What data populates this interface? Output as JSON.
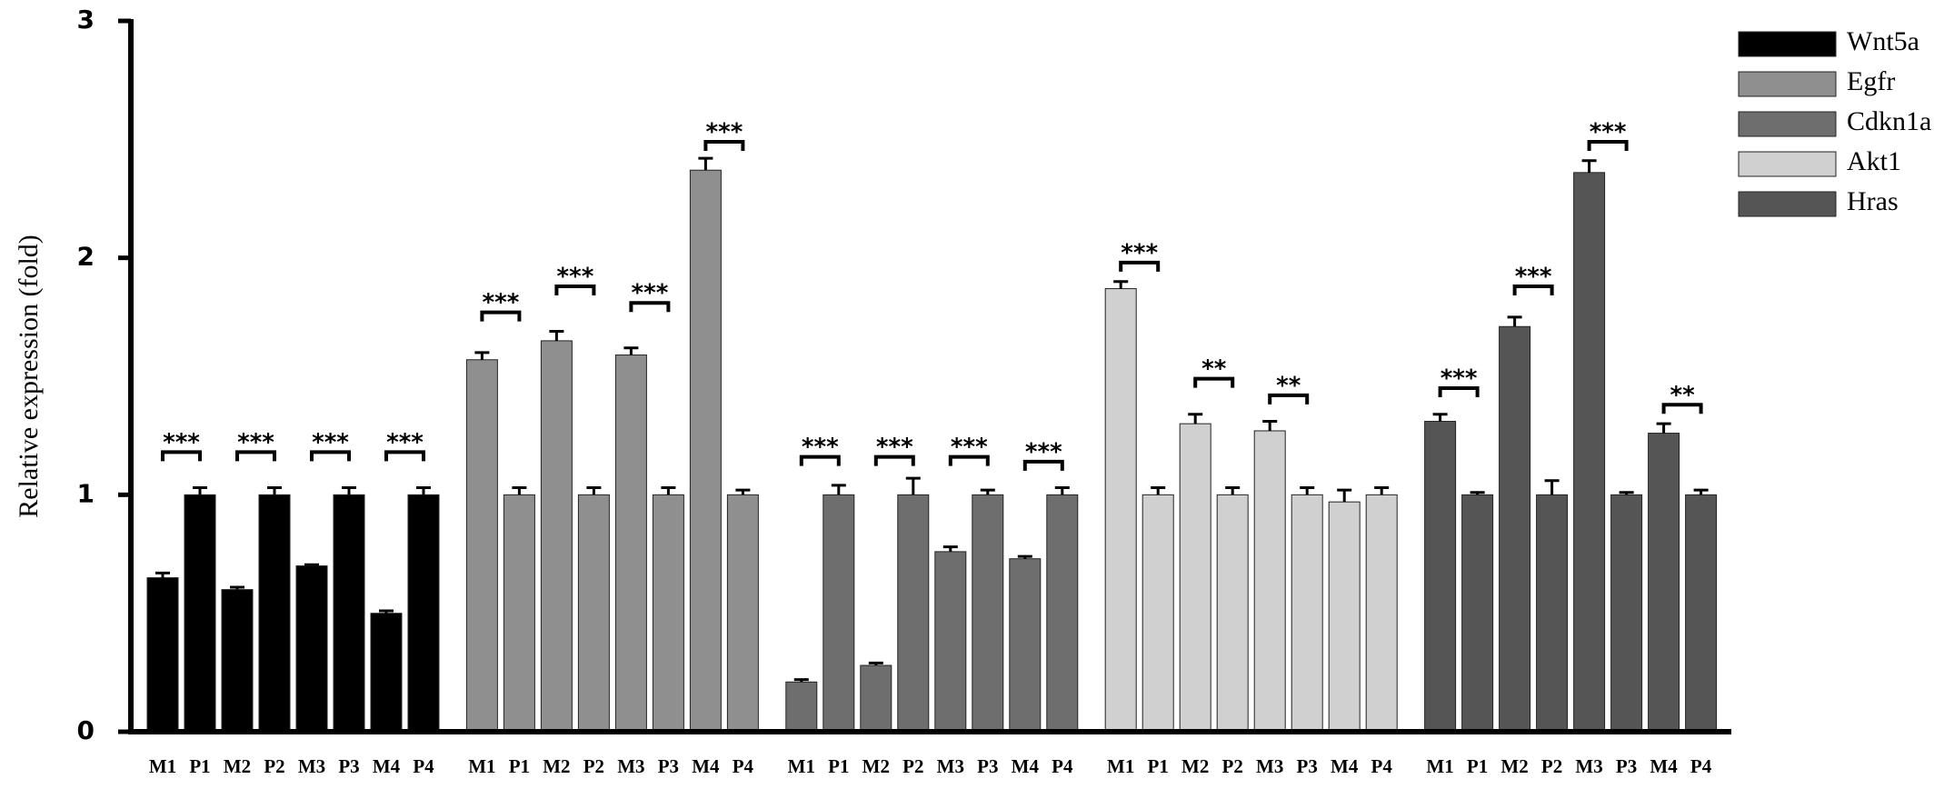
{
  "chart_data": {
    "type": "bar",
    "y_label": "Relative expression (fold)",
    "categories": [
      "M1",
      "P1",
      "M2",
      "P2",
      "M3",
      "P3",
      "M4",
      "P4"
    ],
    "ylim": [
      0,
      3
    ],
    "yticks": [
      0,
      1,
      2,
      3
    ],
    "series": [
      {
        "name": "Wnt5a",
        "color": "#000000",
        "values": [
          0.65,
          1.0,
          0.6,
          1.0,
          0.7,
          1.0,
          0.5,
          1.0
        ],
        "errors": [
          0.02,
          0.03,
          0.01,
          0.03,
          0.005,
          0.03,
          0.01,
          0.03
        ],
        "significance": [
          {
            "label": "***",
            "y": 1.18
          },
          {
            "label": "***",
            "y": 1.18
          },
          {
            "label": "***",
            "y": 1.18
          },
          {
            "label": "***",
            "y": 1.18
          }
        ]
      },
      {
        "name": "Egfr",
        "color": "#8f8f8f",
        "values": [
          1.57,
          1.0,
          1.65,
          1.0,
          1.59,
          1.0,
          2.37,
          1.0
        ],
        "errors": [
          0.03,
          0.03,
          0.04,
          0.03,
          0.03,
          0.03,
          0.05,
          0.02
        ],
        "significance": [
          {
            "label": "***",
            "y": 1.77
          },
          {
            "label": "***",
            "y": 1.88
          },
          {
            "label": "***",
            "y": 1.81
          },
          {
            "label": "***",
            "y": 2.49
          }
        ]
      },
      {
        "name": "Cdkn1a",
        "color": "#6e6e6e",
        "values": [
          0.21,
          1.0,
          0.28,
          1.0,
          0.76,
          1.0,
          0.73,
          1.0
        ],
        "errors": [
          0.01,
          0.04,
          0.01,
          0.07,
          0.02,
          0.02,
          0.01,
          0.03
        ],
        "significance": [
          {
            "label": "***",
            "y": 1.16
          },
          {
            "label": "***",
            "y": 1.16
          },
          {
            "label": "***",
            "y": 1.16
          },
          {
            "label": "***",
            "y": 1.14
          }
        ]
      },
      {
        "name": "Akt1",
        "color": "#d0d0d0",
        "values": [
          1.87,
          1.0,
          1.3,
          1.0,
          1.27,
          1.0,
          0.97,
          1.0
        ],
        "errors": [
          0.03,
          0.03,
          0.04,
          0.03,
          0.04,
          0.03,
          0.05,
          0.03
        ],
        "significance": [
          {
            "label": "***",
            "y": 1.98
          },
          {
            "label": "**",
            "y": 1.49
          },
          {
            "label": "**",
            "y": 1.42
          },
          null
        ]
      },
      {
        "name": "Hras",
        "color": "#555555",
        "values": [
          1.31,
          1.0,
          1.71,
          1.0,
          2.36,
          1.0,
          1.26,
          1.0
        ],
        "errors": [
          0.03,
          0.01,
          0.04,
          0.06,
          0.05,
          0.01,
          0.04,
          0.02
        ],
        "significance": [
          {
            "label": "***",
            "y": 1.45
          },
          {
            "label": "***",
            "y": 1.88
          },
          {
            "label": "***",
            "y": 2.49
          },
          {
            "label": "**",
            "y": 1.38
          }
        ]
      }
    ]
  }
}
